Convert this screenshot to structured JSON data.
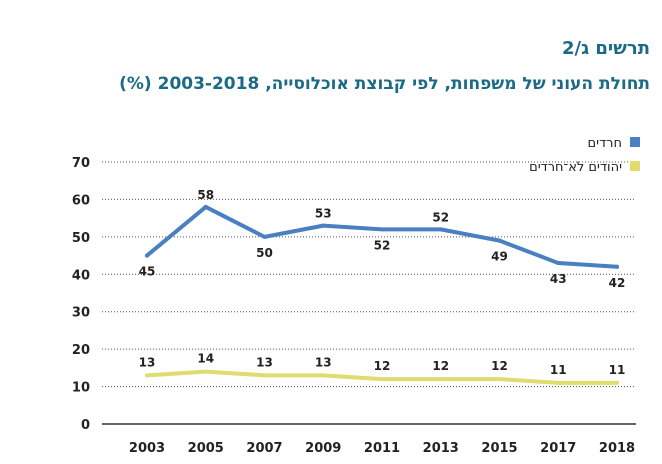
{
  "figure_label": "תרשים ג/2",
  "title": "תחולת העוני של משפחות, לפי קבוצת אוכלוסייה, 2003-2018 (%)",
  "colors": {
    "title": "#1b6a86",
    "haredim": "#4a7fc2",
    "non_haredi": "#dedd6e",
    "grid": "#555555"
  },
  "chart_data": {
    "type": "line",
    "title": "תחולת העוני של משפחות, לפי קבוצת אוכלוסייה, 2003-2018 (%)",
    "xlabel": "",
    "ylabel": "",
    "x": [
      "2003",
      "2005",
      "2007",
      "2009",
      "2011",
      "2013",
      "2015",
      "2017",
      "2018"
    ],
    "ylim": [
      0,
      70
    ],
    "yticks": [
      0,
      10,
      20,
      30,
      40,
      50,
      60,
      70
    ],
    "legend_position": "top-right",
    "series": [
      {
        "name": "חרדים",
        "color": "#4a7fc2",
        "values": [
          45,
          58,
          50,
          53,
          52,
          52,
          49,
          43,
          42
        ]
      },
      {
        "name": "יהודים לא־חרדים",
        "color": "#dedd6e",
        "values": [
          13,
          14,
          13,
          13,
          12,
          12,
          12,
          11,
          11
        ]
      }
    ]
  }
}
